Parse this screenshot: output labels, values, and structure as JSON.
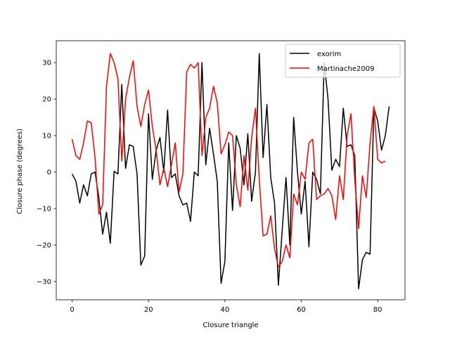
{
  "chart_data": {
    "type": "line",
    "xlabel": "Closure triangle",
    "ylabel": "Closure phase (degrees)",
    "xlim": [
      -4.15,
      87.15
    ],
    "ylim": [
      -35,
      36
    ],
    "xticks": [
      0,
      20,
      40,
      60,
      80
    ],
    "yticks": [
      -30,
      -20,
      -10,
      0,
      10,
      20,
      30
    ],
    "grid": false,
    "legend_position": "upper right",
    "series": [
      {
        "name": "exorim",
        "color": "#000000",
        "x": [
          0,
          1,
          2,
          3,
          4,
          5,
          6,
          7,
          8,
          9,
          10,
          11,
          12,
          13,
          14,
          15,
          16,
          17,
          18,
          19,
          20,
          21,
          22,
          23,
          24,
          25,
          26,
          27,
          28,
          29,
          30,
          31,
          32,
          33,
          34,
          35,
          36,
          37,
          38,
          39,
          40,
          41,
          42,
          43,
          44,
          45,
          46,
          47,
          48,
          49,
          50,
          51,
          52,
          53,
          54,
          55,
          56,
          57,
          58,
          59,
          60,
          61,
          62,
          63,
          64,
          65,
          66,
          67,
          68,
          69,
          70,
          71,
          72,
          73,
          74,
          75,
          76,
          77,
          78,
          79,
          80,
          81,
          82,
          83
        ],
        "y": [
          -0.5,
          -2.5,
          -8.5,
          -3.5,
          -6.5,
          -0.5,
          0,
          -7,
          -17,
          -11,
          -19.5,
          0.2,
          -0.5,
          24,
          1,
          7.5,
          7,
          -0.5,
          -25.5,
          -23,
          16,
          -2,
          6,
          9.5,
          0,
          17,
          -1.5,
          -0.5,
          -6.5,
          -9,
          -8.5,
          -13.5,
          0,
          -1,
          30,
          2,
          12,
          5,
          -2.5,
          -30.5,
          -24.5,
          8,
          -10.5,
          10,
          6.5,
          -3.5,
          10.5,
          -8,
          0,
          32.5,
          4,
          18.5,
          -1.5,
          -8.5,
          -31,
          -16,
          -1.5,
          -20,
          15,
          0,
          -11.5,
          -2.5,
          -20.5,
          0,
          -2,
          -6,
          30,
          20,
          0.5,
          3.5,
          1.5,
          17.5,
          7,
          7.5,
          4.5,
          -32,
          -24,
          -22,
          -22.5,
          17.5,
          14,
          6,
          10,
          18
        ]
      },
      {
        "name": "Martinache2009",
        "color": "#ff0000",
        "x": [
          0,
          1,
          2,
          3,
          4,
          5,
          6,
          7,
          8,
          9,
          10,
          11,
          12,
          13,
          14,
          15,
          16,
          17,
          18,
          19,
          20,
          21,
          22,
          23,
          24,
          25,
          26,
          27,
          28,
          29,
          30,
          31,
          32,
          33,
          34,
          35,
          36,
          37,
          38,
          39,
          40,
          41,
          42,
          43,
          44,
          45,
          46,
          47,
          48,
          49,
          50,
          51,
          52,
          53,
          54,
          55,
          56,
          57,
          58,
          59,
          60,
          61,
          62,
          63,
          64,
          65,
          66,
          67,
          68,
          69,
          70,
          71,
          72,
          73,
          74,
          75,
          76,
          77,
          78,
          79,
          80,
          81,
          82
        ],
        "y": [
          9,
          4.5,
          3.5,
          8,
          14,
          13.5,
          4,
          -11.5,
          -9,
          23.5,
          32.5,
          30,
          25.5,
          3,
          20,
          26,
          30.5,
          18,
          12.5,
          18.5,
          22.5,
          12.5,
          6,
          -3.5,
          1,
          -4,
          2,
          8,
          -5.5,
          -0.5,
          27.5,
          29.5,
          28.5,
          30,
          4.5,
          15,
          17.5,
          23.5,
          19,
          5,
          7.5,
          11,
          10,
          -3.5,
          -9.5,
          4.5,
          -5,
          9.5,
          17.5,
          -2,
          -17.5,
          -17,
          -12,
          -21,
          -26,
          -24.5,
          -20,
          -23.5,
          -6,
          -9,
          0,
          -2,
          8,
          9,
          -7.5,
          -6.5,
          -6,
          -4.5,
          -6.5,
          -13,
          -1,
          -7.5,
          10,
          16,
          -2,
          -15.5,
          -1,
          -7,
          8,
          18,
          3.5,
          2.5,
          3
        ]
      }
    ]
  }
}
